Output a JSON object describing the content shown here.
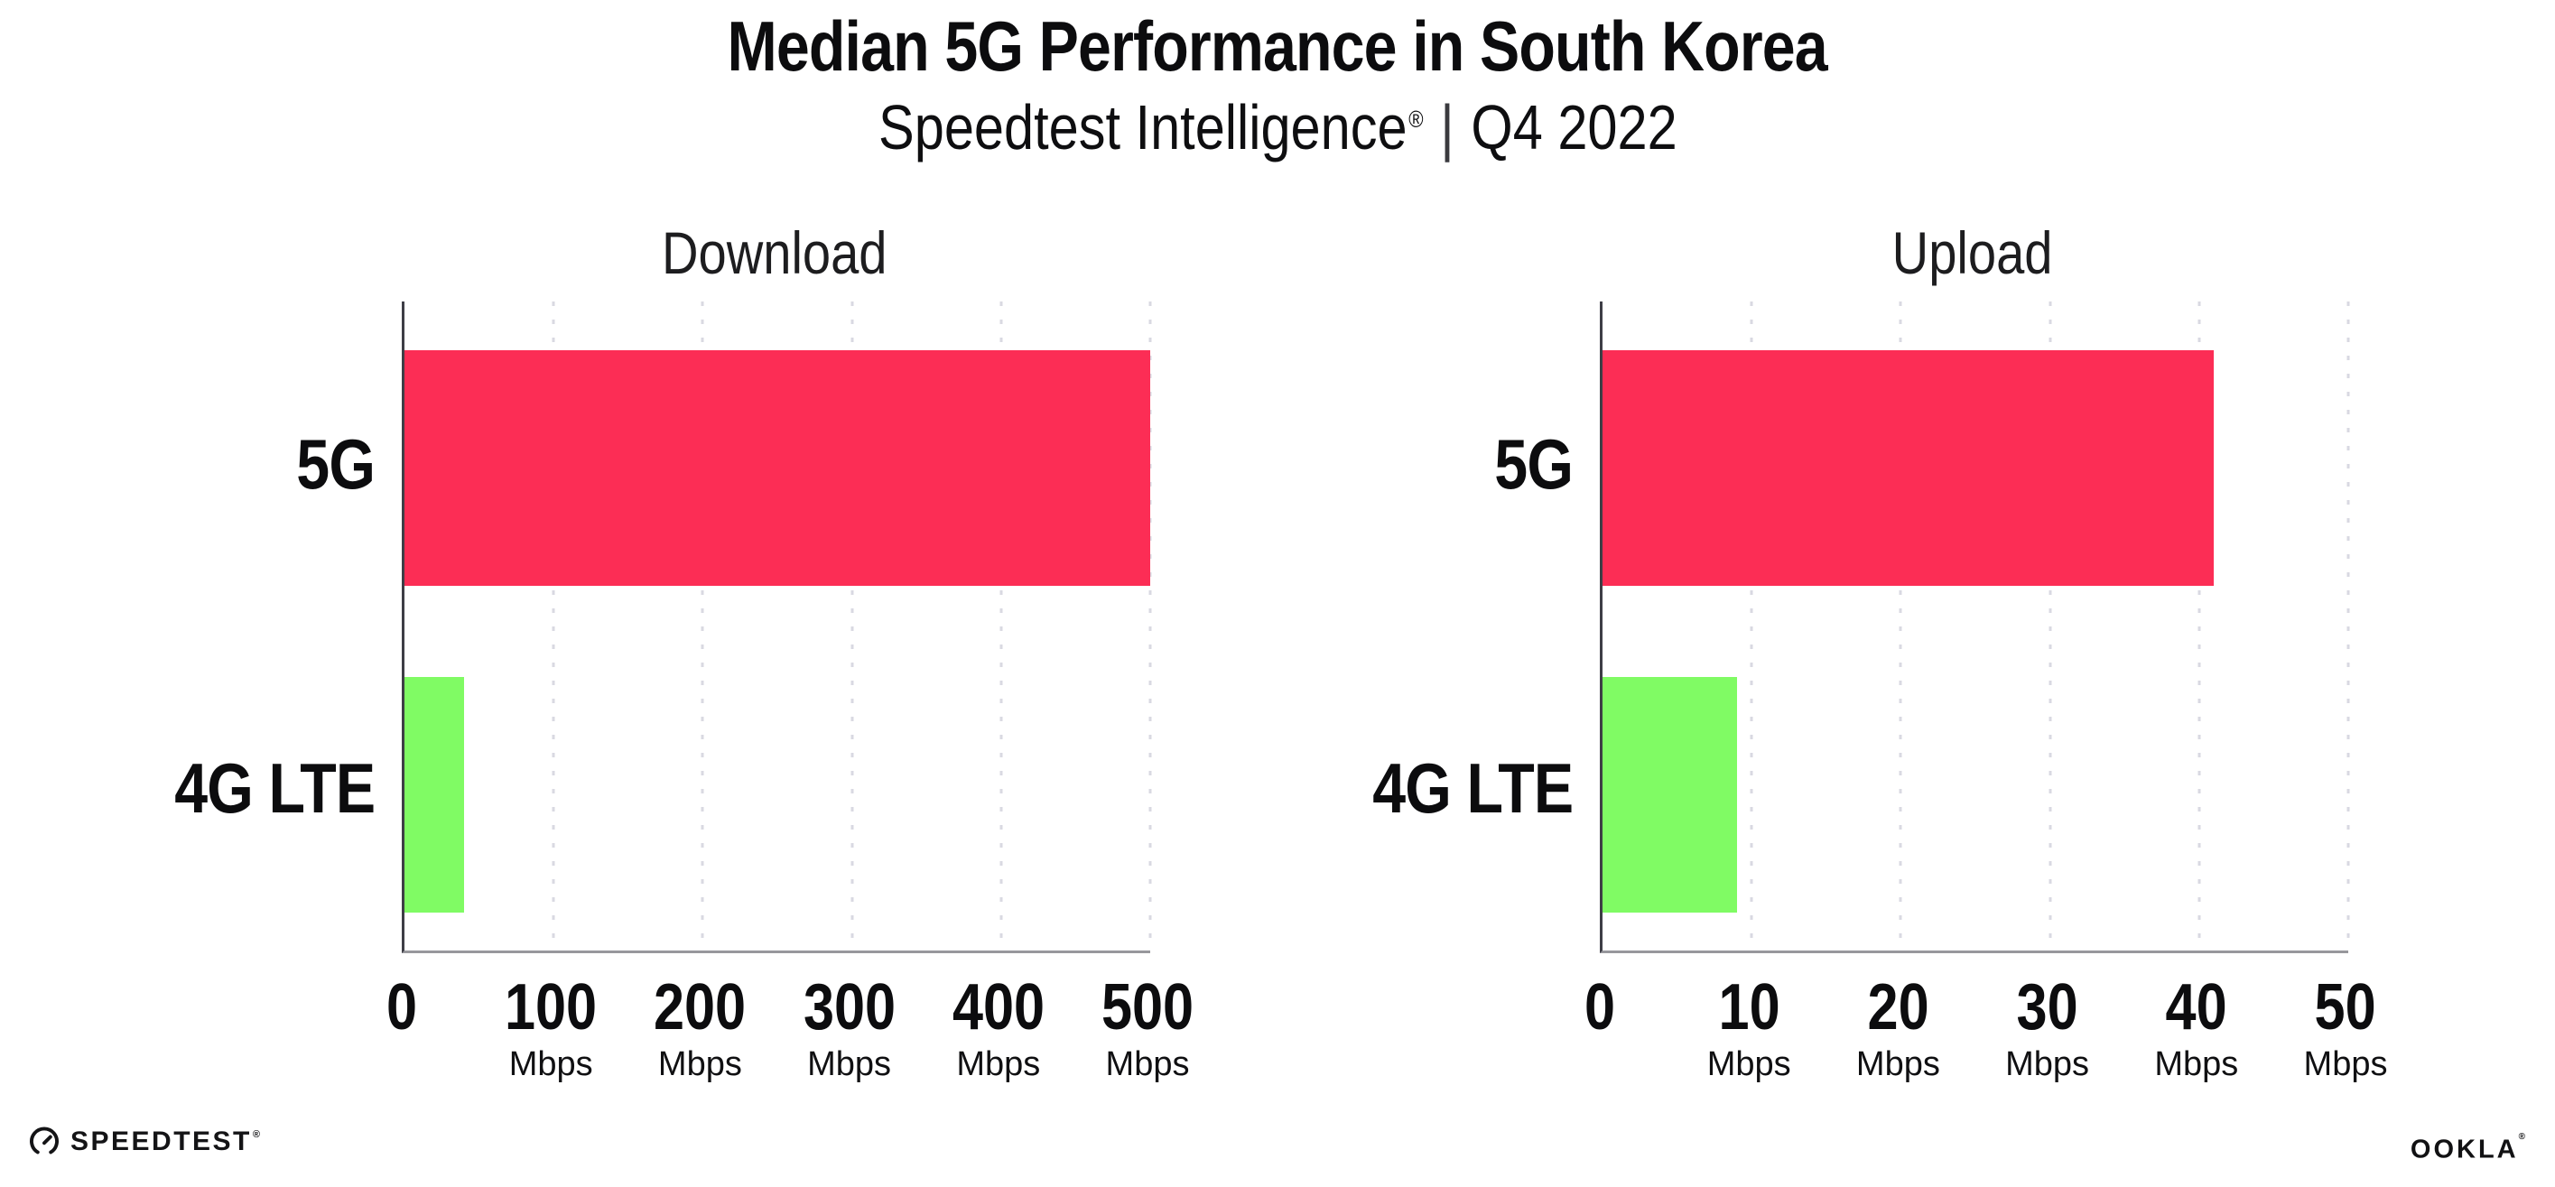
{
  "header": {
    "title": "Median 5G Performance in South Korea",
    "subtitle_brand": "Speedtest Intelligence",
    "subtitle_reg": "®",
    "subtitle_sep": "|",
    "subtitle_period": "Q4 2022"
  },
  "colors": {
    "bar_5g": "#FC2D55",
    "bar_4g_lte": "#80FB64",
    "gridline": "#D9D9E2",
    "axis_vertical": "#3E3E46",
    "axis_horizontal": "#97979C",
    "text": "#0C0C0E"
  },
  "chart_data": [
    {
      "type": "bar",
      "orientation": "horizontal",
      "title": "Download",
      "categories": [
        "5G",
        "4G LTE"
      ],
      "values": [
        500,
        40
      ],
      "unit": "Mbps",
      "xlim": [
        0,
        500
      ],
      "xticks": [
        0,
        100,
        200,
        300,
        400,
        500
      ],
      "colors": [
        "#FC2D55",
        "#80FB64"
      ],
      "grid": "vertical-dotted",
      "legend": "none"
    },
    {
      "type": "bar",
      "orientation": "horizontal",
      "title": "Upload",
      "categories": [
        "5G",
        "4G LTE"
      ],
      "values": [
        41,
        9
      ],
      "unit": "Mbps",
      "xlim": [
        0,
        50
      ],
      "xticks": [
        0,
        10,
        20,
        30,
        40,
        50
      ],
      "colors": [
        "#FC2D55",
        "#80FB64"
      ],
      "grid": "vertical-dotted",
      "legend": "none"
    }
  ],
  "footer": {
    "speedtest": "SPEEDTEST",
    "speedtest_mark": "®",
    "ookla": "OOKLA",
    "ookla_mark": "®"
  }
}
